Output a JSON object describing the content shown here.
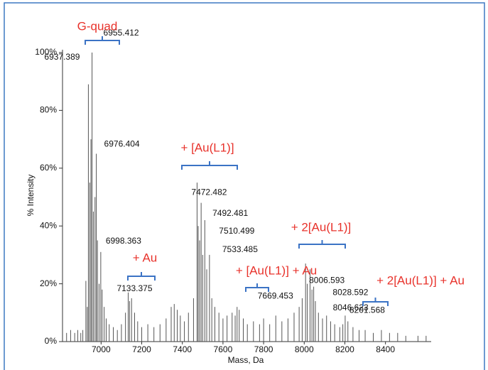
{
  "chart_data": {
    "type": "stick",
    "x_label": "Mass, Da",
    "y_label": "% Intensity",
    "xlim": [
      6810,
      8625
    ],
    "ylim": [
      0,
      100
    ],
    "xticks": [
      7000,
      7200,
      7400,
      7600,
      7800,
      8000,
      8200,
      8400
    ],
    "yticks": [
      {
        "value": 0,
        "label": "0%"
      },
      {
        "value": 20,
        "label": "20%"
      },
      {
        "value": 40,
        "label": "40%"
      },
      {
        "value": 60,
        "label": "60%"
      },
      {
        "value": 80,
        "label": "80%"
      },
      {
        "value": 100,
        "label": "100%"
      }
    ],
    "color": "#555555",
    "x": [
      6830,
      6850,
      6870,
      6885,
      6900,
      6910,
      6925,
      6932,
      6937.389,
      6944,
      6950,
      6955.412,
      6962,
      6970,
      6976.404,
      6982,
      6990,
      6998.363,
      7005,
      7015,
      7025,
      7040,
      7060,
      7080,
      7100,
      7120,
      7133.375,
      7140,
      7150,
      7165,
      7180,
      7200,
      7230,
      7260,
      7290,
      7320,
      7345,
      7360,
      7375,
      7390,
      7410,
      7430,
      7455,
      7472.482,
      7478,
      7485,
      7492.481,
      7500,
      7510.499,
      7520,
      7533.485,
      7545,
      7560,
      7580,
      7600,
      7620,
      7645,
      7660,
      7669.453,
      7680,
      7700,
      7720,
      7750,
      7780,
      7800,
      7830,
      7860,
      7890,
      7920,
      7950,
      7975,
      7990,
      8006.593,
      8015,
      8028.592,
      8038,
      8046.623,
      8055,
      8070,
      8090,
      8110,
      8130,
      8150,
      8175,
      8190,
      8201.568,
      8215,
      8240,
      8270,
      8300,
      8340,
      8380,
      8420,
      8460,
      8500,
      8560,
      8600
    ],
    "values": [
      3,
      4,
      3,
      4,
      3,
      4,
      21,
      12,
      89,
      55,
      70,
      100,
      45,
      50,
      65,
      35,
      20,
      31,
      18,
      12,
      8,
      6,
      5,
      4,
      6,
      10,
      17,
      14,
      15,
      10,
      7,
      5,
      6,
      5,
      6,
      8,
      12,
      13,
      11,
      9,
      7,
      10,
      15,
      55,
      40,
      35,
      48,
      30,
      42,
      25,
      30,
      15,
      12,
      10,
      8,
      9,
      10,
      9,
      12,
      11,
      8,
      6,
      7,
      6,
      8,
      6,
      9,
      7,
      8,
      10,
      12,
      15,
      27,
      20,
      25,
      18,
      19,
      14,
      10,
      8,
      9,
      7,
      6,
      5,
      6,
      9,
      7,
      5,
      4,
      4,
      3,
      4,
      3,
      3,
      2,
      2,
      2
    ],
    "annotations": [
      {
        "x": 6955.412,
        "y": 100
      },
      {
        "x": 6937.389,
        "y": 89
      },
      {
        "x": 6976.404,
        "y": 65
      },
      {
        "x": 6998.363,
        "y": 31
      },
      {
        "x": 7133.375,
        "y": 17
      },
      {
        "x": 7472.482,
        "y": 55
      },
      {
        "x": 7492.481,
        "y": 48
      },
      {
        "x": 7510.499,
        "y": 42
      },
      {
        "x": 7533.485,
        "y": 30
      },
      {
        "x": 7669.453,
        "y": 12
      },
      {
        "x": 8006.593,
        "y": 27
      },
      {
        "x": 8028.592,
        "y": 25
      },
      {
        "x": 8046.623,
        "y": 19
      },
      {
        "x": 8201.568,
        "y": 9
      }
    ],
    "group_labels": [
      "G-quad",
      "+ Au",
      "+ [Au(L1)]",
      "+ [Au(L1)] + Au",
      "+ 2[Au(L1)]",
      "+ 2[Au(L1)] + Au"
    ]
  }
}
